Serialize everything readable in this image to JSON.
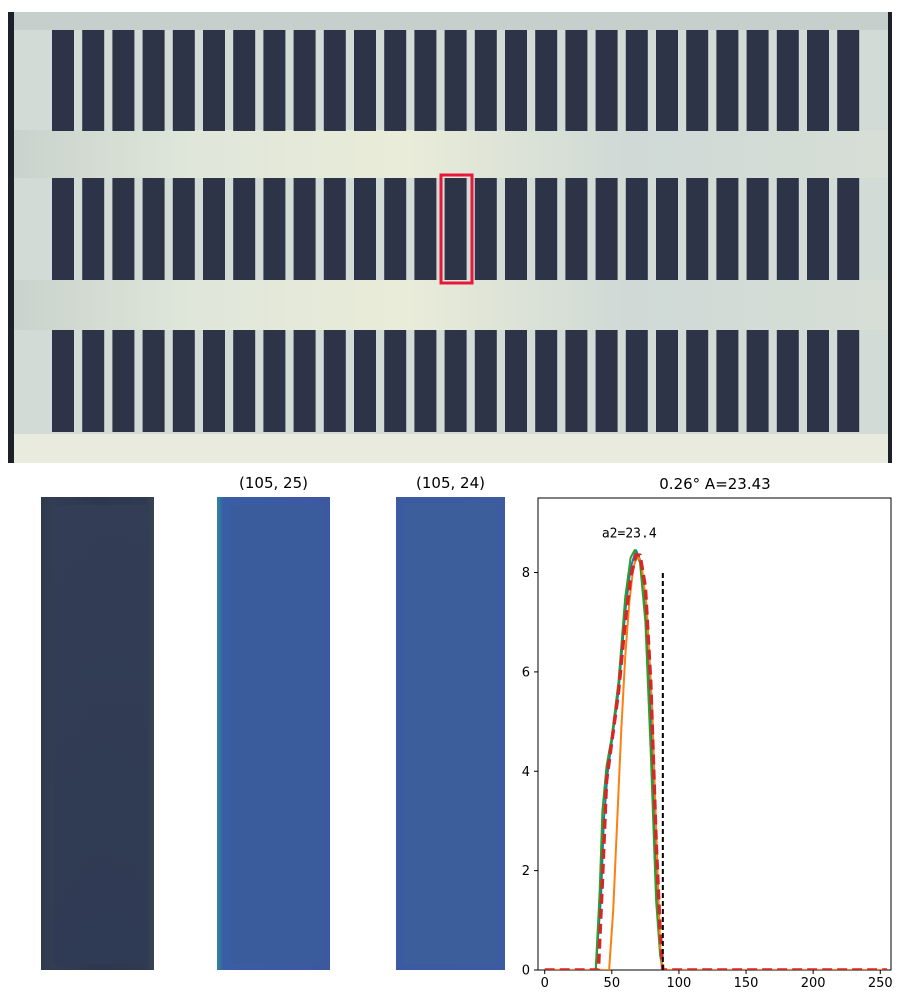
{
  "panels": {
    "crop1_title": "(105, 25)",
    "crop2_title": "(105, 24)"
  },
  "colors": {
    "highlight": "#e8173c",
    "green": "#2ca02c",
    "orange": "#ff7f0e",
    "blue": "#1f77b4",
    "red_dashed": "#d62728",
    "vline": "#000000"
  },
  "chart_data": {
    "type": "line",
    "title": "0.26° A=23.43",
    "xlabel": "",
    "ylabel": "",
    "xlim": [
      -5,
      258
    ],
    "ylim": [
      0,
      9.5
    ],
    "xticks": [
      0,
      50,
      100,
      150,
      200,
      250
    ],
    "yticks": [
      0,
      2,
      4,
      6,
      8
    ],
    "annotation": {
      "text": "a2=23.4",
      "x": 63,
      "y": 8.7
    },
    "vline": {
      "x": 88,
      "y_top": 8.0,
      "style": "dashed"
    },
    "series": [
      {
        "color": "blue",
        "style": "solid",
        "x": [
          0,
          38,
          42,
          44,
          47,
          50,
          55,
          60,
          64,
          68,
          72,
          76,
          80,
          84,
          86,
          88,
          90,
          255
        ],
        "y": [
          0,
          0,
          1.5,
          3.0,
          4.0,
          4.6,
          5.6,
          7.2,
          8.1,
          8.45,
          8.2,
          7.0,
          4.5,
          1.5,
          0.4,
          0,
          0,
          0
        ]
      },
      {
        "color": "green",
        "style": "solid",
        "x": [
          0,
          38,
          41,
          43,
          46,
          50,
          55,
          60,
          64,
          67,
          71,
          75,
          79,
          83,
          86,
          88,
          255
        ],
        "y": [
          0,
          0,
          1.6,
          3.2,
          4.1,
          4.7,
          5.8,
          7.5,
          8.3,
          8.45,
          8.2,
          7.0,
          4.4,
          1.4,
          0.3,
          0,
          0
        ]
      },
      {
        "color": "orange",
        "style": "solid",
        "x": [
          0,
          48,
          51,
          54,
          57,
          60,
          63,
          66,
          69,
          72,
          76,
          80,
          84,
          86,
          88,
          255
        ],
        "y": [
          0,
          0,
          1.2,
          3.0,
          4.8,
          6.3,
          7.4,
          8.1,
          8.35,
          8.2,
          7.3,
          5.3,
          2.0,
          0.5,
          0,
          0
        ]
      },
      {
        "color": "red_dashed",
        "style": "dashed",
        "x": [
          0,
          40,
          43,
          46,
          50,
          55,
          60,
          64,
          68,
          71,
          75,
          79,
          83,
          86,
          88,
          255
        ],
        "y": [
          0,
          0,
          1.8,
          3.8,
          4.6,
          5.6,
          7.0,
          7.9,
          8.35,
          8.35,
          7.7,
          5.8,
          2.6,
          0.8,
          0,
          0
        ]
      }
    ]
  }
}
